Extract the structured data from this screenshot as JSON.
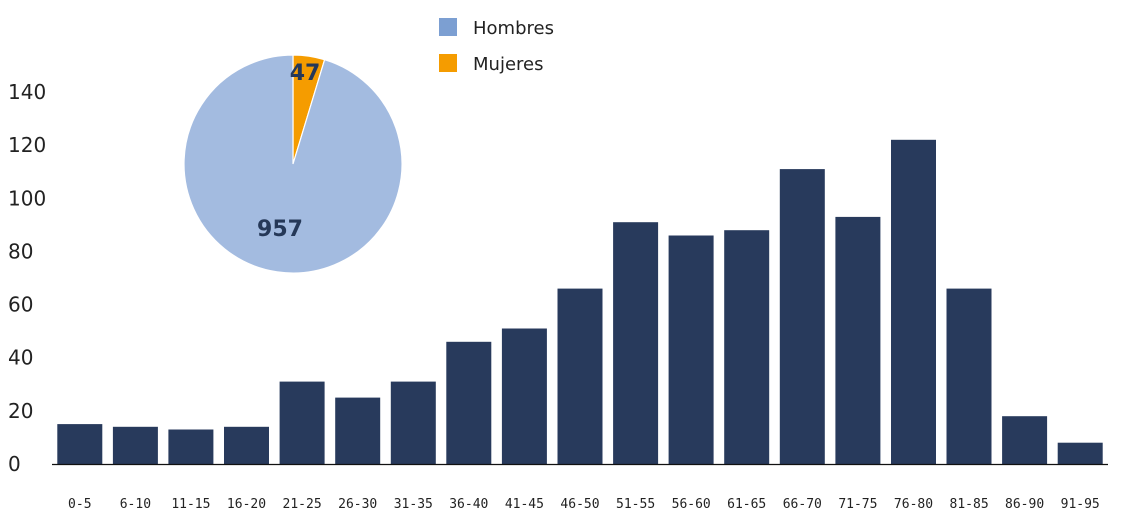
{
  "chart_data": [
    {
      "type": "bar",
      "categories": [
        "0-5",
        "6-10",
        "11-15",
        "16-20",
        "21-25",
        "26-30",
        "31-35",
        "36-40",
        "41-45",
        "46-50",
        "51-55",
        "56-60",
        "61-65",
        "66-70",
        "71-75",
        "76-80",
        "81-85",
        "86-90",
        "91-95"
      ],
      "values": [
        15,
        14,
        13,
        14,
        31,
        25,
        31,
        46,
        51,
        66,
        91,
        86,
        88,
        111,
        93,
        122,
        66,
        18,
        8
      ],
      "ylim": [
        0,
        140
      ],
      "yticks": [
        0,
        20,
        40,
        60,
        80,
        100,
        120,
        140
      ],
      "grid": false,
      "color": "#283a5c"
    },
    {
      "type": "pie",
      "categories": [
        "Hombres",
        "Mujeres"
      ],
      "values": [
        957,
        47
      ],
      "colors": [
        "#a3bbe0",
        "#f59c00"
      ],
      "legend": {
        "placement": "top-center",
        "swatch_colors": [
          "#7c9fd2",
          "#f59c00"
        ]
      }
    }
  ]
}
